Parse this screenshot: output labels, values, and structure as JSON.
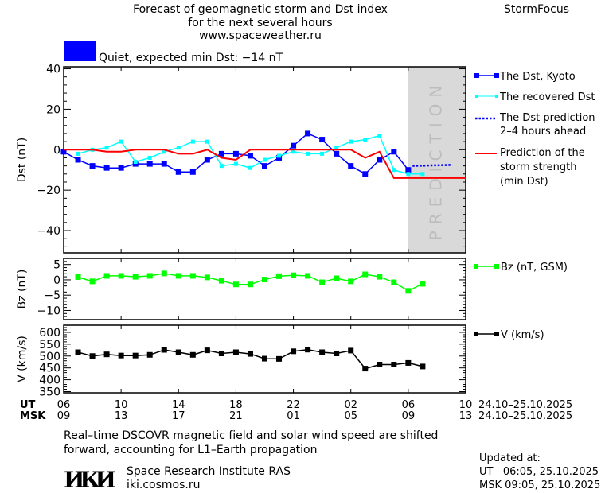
{
  "header": {
    "title_line1": "Forecast of geomagnetic storm and Dst index",
    "title_line2": "for the next several hours",
    "url": "www.spaceweather.ru",
    "brand": "StormFocus",
    "status_text": "Quiet, expected min Dst: −14 nT",
    "status_color": "#0000ff"
  },
  "legend": {
    "dst_kyoto": "The Dst, Kyoto",
    "recovered": "The recovered Dst",
    "prediction_l1": "The Dst prediction",
    "prediction_l2": "2–4 hours ahead",
    "strength_l1": "Prediction of the",
    "strength_l2": "storm strength",
    "strength_l3": "(min Dst)",
    "bz": "Bz (nT, GSM)",
    "v": "V (km/s)"
  },
  "prediction_band_label": "PREDICTION",
  "time_axis": {
    "ut_label": "UT",
    "msk_label": "MSK",
    "ut_ticks": [
      "06",
      "10",
      "14",
      "18",
      "22",
      "02",
      "06",
      "10"
    ],
    "msk_ticks": [
      "09",
      "13",
      "17",
      "21",
      "01",
      "05",
      "09",
      "13"
    ],
    "ut_range": "24.10–25.10.2025",
    "msk_range": "24.10–25.10.2025"
  },
  "footer": {
    "note_line1": "Real–time DSCOVR magnetic field and solar wind speed are shifted",
    "note_line2": "forward, accounting for L1–Earth propagation",
    "logo_text": "ИКИ",
    "institute": "Space Research Institute RAS",
    "institute_url": "iki.cosmos.ru",
    "updated_label": "Updated at:",
    "updated_ut": "UT   06:05, 25.10.2025",
    "updated_msk": "MSK 09:05, 25.10.2025"
  },
  "chart_data": [
    {
      "type": "line",
      "ylabel": "Dst (nT)",
      "ylim": [
        -51,
        41
      ],
      "yticks": [
        40,
        20,
        0,
        -20,
        -40
      ],
      "x_unit": "hours UT from 06:00 24.10.2025",
      "prediction_region": [
        24,
        28
      ],
      "series": [
        {
          "name": "The Dst, Kyoto",
          "color": "#0000ff",
          "x_start": 0,
          "values": [
            -1,
            -5,
            -8,
            -9,
            -9,
            -7,
            -7,
            -7,
            -11,
            -11,
            -5,
            -2,
            -2,
            -3,
            -8,
            -4,
            2,
            8,
            5,
            -2,
            -8,
            -12,
            -5,
            -1,
            -10
          ]
        },
        {
          "name": "The recovered Dst",
          "color": "#00ffff",
          "x_start": 1,
          "values": [
            -2,
            0,
            1,
            4,
            -6,
            -4,
            -1,
            1,
            4,
            4,
            -8,
            -7,
            -9,
            -5,
            -3,
            -1,
            -2,
            -2,
            1,
            4,
            5,
            7,
            -10,
            -12,
            -12
          ]
        },
        {
          "name": "The Dst prediction 2–4 hours ahead",
          "color": "#0000ff",
          "x": [
            24.3,
            27
          ],
          "values": [
            -8,
            -7.5
          ]
        },
        {
          "name": "Prediction of the storm strength (min Dst)",
          "color": "#ff0000",
          "x_start": 0,
          "values": [
            0,
            0,
            0,
            -1,
            -1,
            0,
            0,
            0,
            -2,
            -2,
            0,
            -4,
            -5,
            0,
            0,
            0,
            0,
            0,
            0,
            0,
            0,
            -4,
            -1,
            -14,
            -14,
            -14,
            -14,
            -14,
            -14
          ]
        }
      ]
    },
    {
      "type": "line",
      "ylabel": "Bz (nT)",
      "ylim": [
        -13,
        7
      ],
      "yticks": [
        5,
        0,
        -5,
        -10
      ],
      "series": [
        {
          "name": "Bz (nT, GSM)",
          "color": "#00ff00",
          "x_start": 1,
          "values": [
            0.9,
            -0.5,
            1.3,
            1.3,
            1.0,
            1.3,
            2.1,
            1.3,
            1.3,
            0.8,
            -0.3,
            -1.5,
            -1.5,
            0.1,
            1.2,
            1.5,
            1.3,
            -0.8,
            0.5,
            -0.5,
            1.8,
            1.0,
            -0.8,
            -3.6,
            -1.3
          ]
        }
      ]
    },
    {
      "type": "line",
      "ylabel": "V (km/s)",
      "ylim": [
        345,
        630
      ],
      "yticks": [
        600,
        550,
        500,
        450,
        400,
        350
      ],
      "series": [
        {
          "name": "V (km/s)",
          "color": "#000000",
          "x_start": 1,
          "values": [
            516,
            500,
            507,
            502,
            502,
            505,
            526,
            516,
            505,
            524,
            511,
            516,
            509,
            489,
            488,
            520,
            527,
            516,
            511,
            523,
            447,
            464,
            464,
            471,
            456
          ]
        }
      ]
    }
  ]
}
